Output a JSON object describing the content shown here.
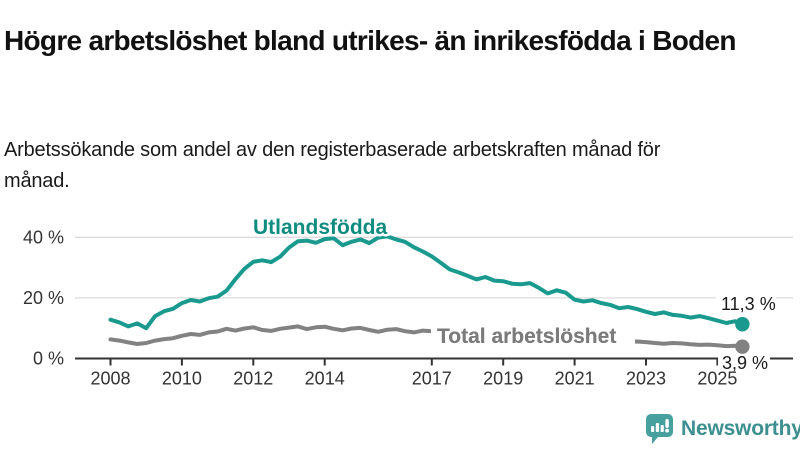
{
  "header": {
    "title": "Högre arbetslöshet bland utrikes- än inrikesfödda i Boden",
    "subtitle": "Arbetssökande som andel av den registerbaserade arbetskraften månad för månad."
  },
  "chart_data": {
    "type": "line",
    "title": "Högre arbetslöshet bland utrikes- än inrikesfödda i Boden",
    "subtitle": "Arbetssökande som andel av den registerbaserade arbetskraften månad för månad.",
    "xlabel": "",
    "ylabel": "",
    "grid": "horizontal-only",
    "legend_position": "inline-labels-on-lines",
    "xlim": [
      2007.0,
      2026.3
    ],
    "ylim": [
      0,
      44
    ],
    "x_ticks": [
      2008,
      2010,
      2012,
      2014,
      2017,
      2019,
      2021,
      2023,
      2025
    ],
    "y_ticks": [
      {
        "value": 0,
        "label": "0 %"
      },
      {
        "value": 20,
        "label": "20 %"
      },
      {
        "value": 40,
        "label": "40 %"
      }
    ],
    "colors": {
      "axis": "#333333",
      "gridline": "#dcdcdc",
      "tick_label": "#333333",
      "value_label": "#1a1a1a"
    },
    "series": [
      {
        "name": "Utlandsfödda",
        "color": "#1a9a8e",
        "label_color": "#0e8c80",
        "end_label": "11,3 %",
        "end_value": 11.3,
        "x": [
          2008.0,
          2008.25,
          2008.5,
          2008.75,
          2009.0,
          2009.25,
          2009.5,
          2009.75,
          2010.0,
          2010.25,
          2010.5,
          2010.75,
          2011.0,
          2011.25,
          2011.5,
          2011.75,
          2012.0,
          2012.25,
          2012.5,
          2012.75,
          2013.0,
          2013.25,
          2013.5,
          2013.75,
          2014.0,
          2014.25,
          2014.5,
          2014.75,
          2015.0,
          2015.25,
          2015.5,
          2015.75,
          2016.0,
          2016.25,
          2016.5,
          2016.75,
          2017.0,
          2017.25,
          2017.5,
          2017.75,
          2018.0,
          2018.25,
          2018.5,
          2018.75,
          2019.0,
          2019.25,
          2019.5,
          2019.75,
          2020.0,
          2020.25,
          2020.5,
          2020.75,
          2021.0,
          2021.25,
          2021.5,
          2021.75,
          2022.0,
          2022.25,
          2022.5,
          2022.75,
          2023.0,
          2023.25,
          2023.5,
          2023.75,
          2024.0,
          2024.25,
          2024.5,
          2024.75,
          2025.0,
          2025.25,
          2025.5,
          2025.7
        ],
        "values": [
          12.8,
          11.9,
          10.6,
          11.6,
          10.0,
          14.0,
          15.6,
          16.4,
          18.3,
          19.3,
          18.8,
          19.9,
          20.4,
          22.4,
          26.2,
          29.6,
          31.9,
          32.4,
          31.8,
          33.6,
          36.6,
          38.7,
          38.9,
          38.2,
          39.4,
          39.7,
          37.4,
          38.5,
          39.3,
          38.1,
          39.9,
          40.3,
          39.3,
          38.5,
          36.7,
          35.3,
          33.7,
          31.6,
          29.4,
          28.4,
          27.3,
          26.1,
          26.9,
          25.7,
          25.5,
          24.7,
          24.5,
          24.9,
          23.3,
          21.5,
          22.5,
          21.7,
          19.4,
          18.8,
          19.2,
          18.3,
          17.7,
          16.6,
          17.0,
          16.3,
          15.4,
          14.7,
          15.2,
          14.4,
          14.1,
          13.5,
          14.0,
          13.3,
          12.5,
          11.7,
          12.3,
          11.3
        ]
      },
      {
        "name": "Total arbetslöshet",
        "color": "#828282",
        "label_color": "#7b7b7b",
        "end_label": "3,9 %",
        "end_value": 3.9,
        "x": [
          2008.0,
          2008.25,
          2008.5,
          2008.75,
          2009.0,
          2009.25,
          2009.5,
          2009.75,
          2010.0,
          2010.25,
          2010.5,
          2010.75,
          2011.0,
          2011.25,
          2011.5,
          2011.75,
          2012.0,
          2012.25,
          2012.5,
          2012.75,
          2013.0,
          2013.25,
          2013.5,
          2013.75,
          2014.0,
          2014.25,
          2014.5,
          2014.75,
          2015.0,
          2015.25,
          2015.5,
          2015.75,
          2016.0,
          2016.25,
          2016.5,
          2016.75,
          2017.0,
          2017.25,
          2017.5,
          2017.75,
          2018.0,
          2018.25,
          2018.5,
          2018.75,
          2019.0,
          2019.25,
          2019.5,
          2019.75,
          2020.0,
          2020.25,
          2020.5,
          2020.75,
          2021.0,
          2021.25,
          2021.5,
          2021.75,
          2022.0,
          2022.25,
          2022.5,
          2022.75,
          2023.0,
          2023.25,
          2023.5,
          2023.75,
          2024.0,
          2024.25,
          2024.5,
          2024.75,
          2025.0,
          2025.25,
          2025.5,
          2025.7
        ],
        "values": [
          6.3,
          5.9,
          5.3,
          4.8,
          5.1,
          5.9,
          6.4,
          6.7,
          7.5,
          8.1,
          7.8,
          8.6,
          8.9,
          9.8,
          9.2,
          9.9,
          10.3,
          9.4,
          9.1,
          9.8,
          10.2,
          10.6,
          9.7,
          10.3,
          10.5,
          9.8,
          9.3,
          9.9,
          10.1,
          9.4,
          8.8,
          9.5,
          9.7,
          9.0,
          8.6,
          9.2,
          9.0,
          8.5,
          8.2,
          8.5,
          8.2,
          7.7,
          7.4,
          7.7,
          7.5,
          7.2,
          7.0,
          7.3,
          7.2,
          7.9,
          8.1,
          7.7,
          7.4,
          7.0,
          6.6,
          6.3,
          6.1,
          5.7,
          5.5,
          5.6,
          5.4,
          5.1,
          4.9,
          5.1,
          5.0,
          4.7,
          4.5,
          4.6,
          4.4,
          4.1,
          4.2,
          3.9
        ]
      }
    ]
  },
  "footer": {
    "brand": "Newsworthy",
    "logo_icon": "newsworthy-speech-bubble-bar-chart-icon",
    "brand_color": "#3d8f90",
    "icon_color": "#46a09e"
  }
}
